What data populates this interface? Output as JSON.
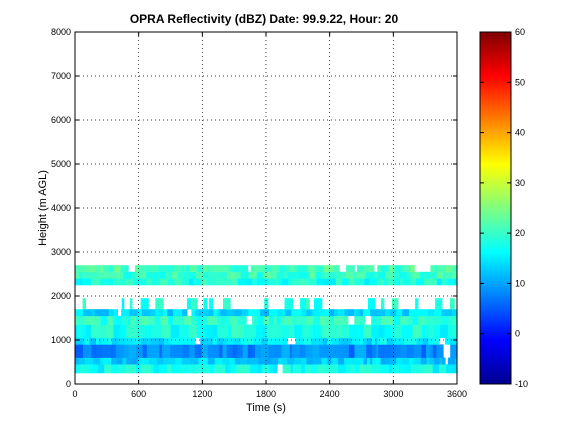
{
  "chart_data": {
    "type": "heatmap",
    "title": "OPRA Reflectivity (dBZ)  Date: 99.9.22, Hour: 20",
    "xlabel": "Time (s)",
    "ylabel": "Height (m AGL)",
    "xlim": [
      0,
      3600
    ],
    "ylim": [
      0,
      8000
    ],
    "xticks": [
      "0",
      "600",
      "1200",
      "1800",
      "2400",
      "3000",
      "3600"
    ],
    "yticks": [
      "0",
      "1000",
      "2000",
      "3000",
      "4000",
      "5000",
      "6000",
      "7000",
      "8000"
    ],
    "grid": true,
    "colorbar": {
      "range": [
        -10,
        60
      ],
      "ticks": [
        "-10",
        "0",
        "10",
        "20",
        "30",
        "40",
        "50",
        "60"
      ],
      "colormap": "jet"
    },
    "layers": [
      {
        "bottom": 250,
        "top": 450,
        "dbz": 17
      },
      {
        "bottom": 450,
        "top": 600,
        "dbz": 13
      },
      {
        "bottom": 600,
        "top": 900,
        "dbz": 8
      },
      {
        "bottom": 900,
        "top": 1050,
        "dbz": 15
      },
      {
        "bottom": 1050,
        "top": 1350,
        "dbz": 18
      },
      {
        "bottom": 1350,
        "top": 1550,
        "dbz": 19
      },
      {
        "bottom": 1550,
        "top": 1700,
        "dbz": 14
      },
      {
        "bottom": 1700,
        "top": 1950,
        "dbz": 18
      },
      {
        "bottom": 2250,
        "top": 2400,
        "dbz": 18
      },
      {
        "bottom": 2400,
        "top": 2550,
        "dbz": 20
      },
      {
        "bottom": 2550,
        "top": 2700,
        "dbz": 21
      }
    ]
  }
}
